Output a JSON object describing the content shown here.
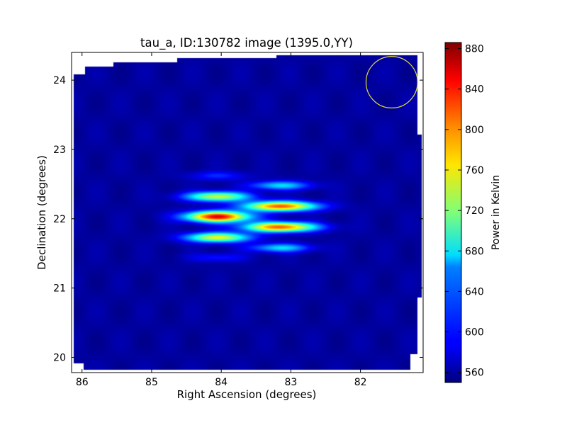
{
  "chart_data": {
    "type": "heatmap",
    "title": "tau_a, ID:130782 image (1395.0,YY)",
    "xlabel": "Right Ascension (degrees)",
    "ylabel": "Declination (degrees)",
    "xlim": [
      86.15,
      81.1
    ],
    "ylim": [
      19.78,
      24.4
    ],
    "x_axis_inverted": true,
    "x_ticks": [
      86,
      85,
      84,
      83,
      82
    ],
    "y_ticks": [
      20,
      21,
      22,
      23,
      24
    ],
    "colorbar": {
      "label": "Power in Kelvin",
      "colormap": "jet",
      "range": [
        550,
        886
      ],
      "ticks": [
        560,
        600,
        640,
        680,
        720,
        760,
        800,
        840,
        880
      ]
    },
    "background_level": 560,
    "blobs": [
      {
        "ra": 84.05,
        "dec": 22.03,
        "peak": 850,
        "sigma_ra": 0.32,
        "sigma_dec": 0.055
      },
      {
        "ra": 84.05,
        "dec": 21.73,
        "peak": 755,
        "sigma_ra": 0.32,
        "sigma_dec": 0.05
      },
      {
        "ra": 84.05,
        "dec": 22.32,
        "peak": 745,
        "sigma_ra": 0.32,
        "sigma_dec": 0.05
      },
      {
        "ra": 84.05,
        "dec": 21.44,
        "peak": 600,
        "sigma_ra": 0.28,
        "sigma_dec": 0.045
      },
      {
        "ra": 84.05,
        "dec": 22.62,
        "peak": 605,
        "sigma_ra": 0.28,
        "sigma_dec": 0.045
      },
      {
        "ra": 83.15,
        "dec": 22.18,
        "peak": 815,
        "sigma_ra": 0.36,
        "sigma_dec": 0.05
      },
      {
        "ra": 83.15,
        "dec": 21.88,
        "peak": 815,
        "sigma_ra": 0.36,
        "sigma_dec": 0.05
      },
      {
        "ra": 83.15,
        "dec": 22.48,
        "peak": 665,
        "sigma_ra": 0.3,
        "sigma_dec": 0.045
      },
      {
        "ra": 83.15,
        "dec": 21.58,
        "peak": 665,
        "sigma_ra": 0.3,
        "sigma_dec": 0.045
      }
    ],
    "beam_circle": {
      "ra": 81.55,
      "dec": 23.97,
      "radius_deg": 0.37,
      "color": "#e3df3c"
    }
  }
}
